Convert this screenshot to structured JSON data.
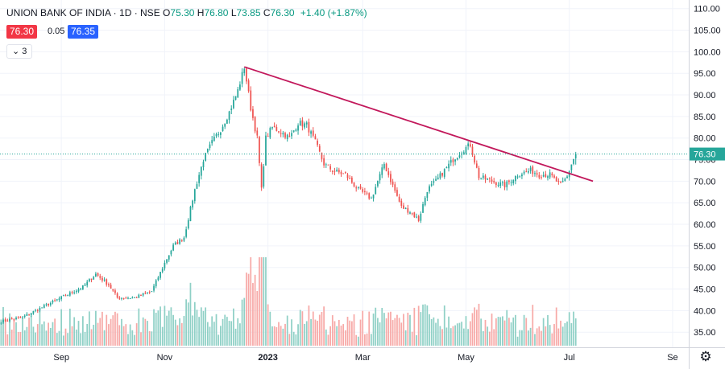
{
  "legend": {
    "symbol": "UNION BANK OF INDIA · 1D · NSE",
    "o_label": "O",
    "o": "75.30",
    "h_label": "H",
    "h": "76.80",
    "l_label": "L",
    "l": "73.85",
    "c_label": "C",
    "c": "76.30",
    "change": "+1.40 (+1.87%)"
  },
  "quote": {
    "bid": "76.30",
    "spread": "0.05",
    "ask": "76.35"
  },
  "indicator_toggle": {
    "icon": "chevron-down-icon",
    "count": "3"
  },
  "settings_icon": "gear-icon",
  "colors": {
    "up": "#26a69a",
    "down": "#ef5350",
    "vol_up": "#8fd0c6",
    "vol_down": "#f7a9a7",
    "trendline": "#c2185b",
    "last_price": "#26a69a",
    "grid": "#f0f3fa",
    "axis_text": "#131722"
  },
  "chart_data": {
    "type": "candlestick",
    "symbol": "UNION BANK OF INDIA",
    "interval": "1D",
    "exchange": "NSE",
    "y_axis": {
      "position": "right",
      "range": [
        31.5,
        112.0
      ],
      "ticks": [
        "110.00",
        "105.00",
        "100.00",
        "95.00",
        "90.00",
        "85.00",
        "80.00",
        "75.00",
        "70.00",
        "65.00",
        "60.00",
        "55.00",
        "50.00",
        "45.00",
        "40.00",
        "35.00"
      ]
    },
    "x_axis": {
      "labels": [
        {
          "text": "Sep",
          "bold": false,
          "day_index": 28
        },
        {
          "text": "Nov",
          "bold": false,
          "day_index": 76
        },
        {
          "text": "2023",
          "bold": true,
          "day_index": 124
        },
        {
          "text": "Mar",
          "bold": false,
          "day_index": 168
        },
        {
          "text": "May",
          "bold": false,
          "day_index": 216
        },
        {
          "text": "Jul",
          "bold": false,
          "day_index": 264
        },
        {
          "text": "Se",
          "bold": false,
          "day_index": 312
        }
      ],
      "total_days": 320
    },
    "last_price": {
      "value": 76.3,
      "label": "76.30"
    },
    "grid": true,
    "volume_pane": true,
    "trendline": {
      "start": {
        "day_index": 113,
        "price": 96.5
      },
      "end": {
        "day_index": 275,
        "price": 70.0
      }
    },
    "anchors": [
      [
        0,
        37.5
      ],
      [
        10,
        38.5
      ],
      [
        18,
        40.5
      ],
      [
        28,
        43.0
      ],
      [
        38,
        45.5
      ],
      [
        44,
        48.5
      ],
      [
        50,
        46.0
      ],
      [
        54,
        43.0
      ],
      [
        62,
        43.0
      ],
      [
        70,
        44.5
      ],
      [
        76,
        51.0
      ],
      [
        80,
        55.0
      ],
      [
        85,
        57.0
      ],
      [
        90,
        68.0
      ],
      [
        94,
        75.0
      ],
      [
        98,
        79.0
      ],
      [
        102,
        82.0
      ],
      [
        106,
        86.0
      ],
      [
        110,
        91.0
      ],
      [
        113,
        96.5
      ],
      [
        116,
        87.0
      ],
      [
        119,
        80.0
      ],
      [
        121,
        68.0
      ],
      [
        123,
        80.0
      ],
      [
        126,
        82.5
      ],
      [
        130,
        81.5
      ],
      [
        134,
        80.0
      ],
      [
        138,
        83.5
      ],
      [
        142,
        83.0
      ],
      [
        146,
        79.0
      ],
      [
        150,
        74.0
      ],
      [
        154,
        72.5
      ],
      [
        160,
        71.5
      ],
      [
        166,
        68.0
      ],
      [
        172,
        66.0
      ],
      [
        178,
        74.0
      ],
      [
        182,
        69.0
      ],
      [
        186,
        64.0
      ],
      [
        190,
        63.0
      ],
      [
        194,
        61.0
      ],
      [
        198,
        68.0
      ],
      [
        202,
        70.0
      ],
      [
        206,
        72.5
      ],
      [
        210,
        75.0
      ],
      [
        214,
        77.0
      ],
      [
        218,
        78.5
      ],
      [
        222,
        71.0
      ],
      [
        228,
        70.0
      ],
      [
        234,
        69.0
      ],
      [
        240,
        71.5
      ],
      [
        246,
        72.5
      ],
      [
        250,
        71.5
      ],
      [
        255,
        71.5
      ],
      [
        260,
        69.0
      ],
      [
        263,
        71.0
      ],
      [
        265,
        74.0
      ],
      [
        267,
        76.3
      ]
    ],
    "last_ohlc": {
      "o": 75.3,
      "h": 76.8,
      "l": 73.85,
      "c": 76.3
    }
  }
}
